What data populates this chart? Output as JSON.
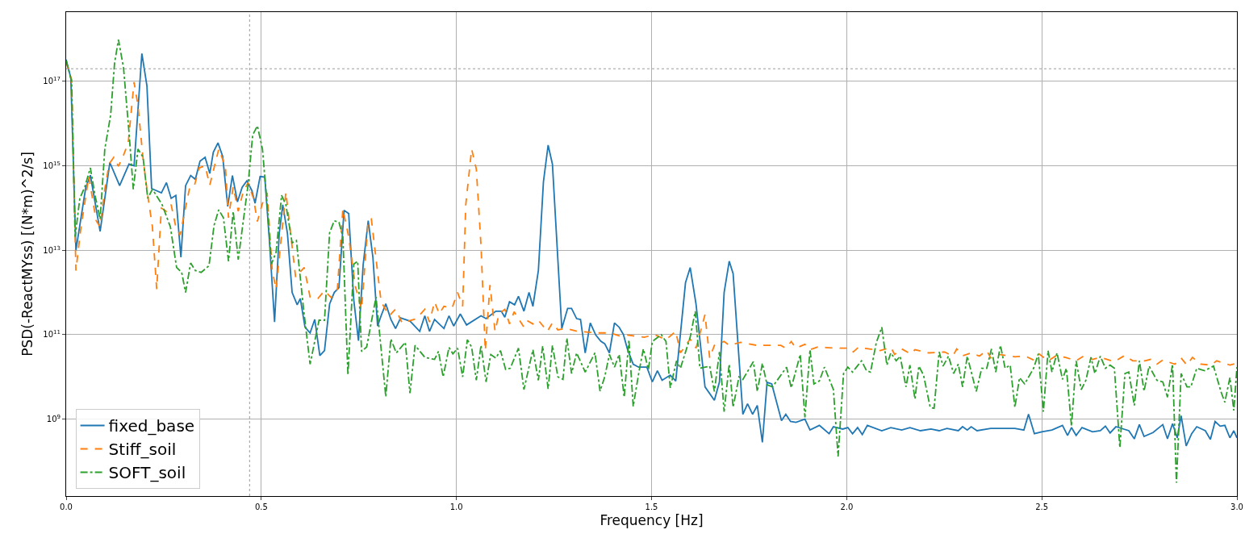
{
  "chart_data": {
    "type": "line",
    "xlabel": "Frequency [Hz]",
    "ylabel": "PSD(-ReactMYss) [(N*m)^2/s]",
    "log": "y",
    "grid": true,
    "legend": "bottom left",
    "marker": "none",
    "xlim": [
      0,
      3
    ],
    "xticks": [
      {
        "value": 0,
        "label": "0.0"
      },
      0.5,
      {
        "value": 1,
        "label": "1.0"
      },
      1.5,
      {
        "value": 2,
        "label": "2.0"
      },
      2.5,
      {
        "value": 3,
        "label": "3.0"
      }
    ],
    "ylim": [
      15000000.0,
      4.4e+18
    ],
    "yticks": [
      {
        "value": 1000000000.0,
        "label": "10$^{9}$"
      },
      {
        "value": 100000000000.0,
        "label": "10$^{11}$"
      },
      {
        "value": 10000000000000.0,
        "label": "10$^{13}$"
      },
      {
        "value": 1000000000000000.0,
        "label": "10$^{15}$"
      },
      {
        "value": 1e+17,
        "label": "10$^{17}$"
      }
    ],
    "ref_lines": [
      {
        "axis": "x",
        "value": 0.47,
        "color": "#808080",
        "line_style": "dotted"
      },
      {
        "axis": "y",
        "value": 2e+17,
        "color": "#808080",
        "line_style": "dotted"
      }
    ],
    "series": [
      {
        "name": "fixed_base",
        "color": "#1f77b4",
        "line_style": "solid",
        "x": [
          0,
          0.012,
          0.025,
          0.05,
          0.062,
          0.087,
          0.112,
          0.137,
          0.161,
          0.174,
          0.194,
          0.207,
          0.219,
          0.244,
          0.257,
          0.269,
          0.281,
          0.294,
          0.306,
          0.319,
          0.331,
          0.343,
          0.356,
          0.368,
          0.377,
          0.389,
          0.401,
          0.414,
          0.426,
          0.439,
          0.451,
          0.463,
          0.476,
          0.484,
          0.497,
          0.509,
          0.521,
          0.534,
          0.546,
          0.555,
          0.567,
          0.579,
          0.592,
          0.6,
          0.612,
          0.625,
          0.637,
          0.65,
          0.662,
          0.675,
          0.687,
          0.699,
          0.712,
          0.724,
          0.737,
          0.749,
          0.761,
          0.774,
          0.786,
          0.798,
          0.807,
          0.819,
          0.832,
          0.844,
          0.857,
          0.881,
          0.906,
          0.919,
          0.931,
          0.944,
          0.968,
          0.981,
          0.993,
          1.01,
          1.026,
          1.063,
          1.076,
          1.101,
          1.115,
          1.124,
          1.136,
          1.149,
          1.159,
          1.173,
          1.186,
          1.196,
          1.21,
          1.223,
          1.235,
          1.246,
          1.27,
          1.285,
          1.295,
          1.308,
          1.318,
          1.33,
          1.343,
          1.357,
          1.37,
          1.38,
          1.392,
          1.405,
          1.417,
          1.428,
          1.438,
          1.453,
          1.467,
          1.488,
          1.502,
          1.515,
          1.527,
          1.548,
          1.562,
          1.587,
          1.599,
          1.614,
          1.637,
          1.661,
          1.674,
          1.686,
          1.699,
          1.709,
          1.734,
          1.746,
          1.759,
          1.771,
          1.784,
          1.796,
          1.808,
          1.833,
          1.844,
          1.856,
          1.87,
          1.893,
          1.906,
          1.93,
          1.955,
          1.966,
          1.99,
          2.003,
          2.015,
          2.028,
          2.04,
          2.053,
          2.09,
          2.113,
          2.141,
          2.162,
          2.189,
          2.216,
          2.237,
          2.257,
          2.286,
          2.297,
          2.309,
          2.319,
          2.334,
          2.369,
          2.431,
          2.454,
          2.466,
          2.481,
          2.5,
          2.526,
          2.553,
          2.566,
          2.576,
          2.588,
          2.603,
          2.63,
          2.65,
          2.663,
          2.675,
          2.69,
          2.723,
          2.737,
          2.75,
          2.762,
          2.785,
          2.81,
          2.822,
          2.835,
          2.847,
          2.857,
          2.87,
          2.884,
          2.897,
          2.919,
          2.932,
          2.944,
          2.957,
          2.969,
          2.982,
          2.992,
          3.0
        ],
        "values": [
          3.3e+17,
          1.2e+17,
          10000000000000.0,
          300000000000000.0,
          600000000000000.0,
          28000000000000.0,
          1200000000000000.0,
          340000000000000.0,
          1100000000000000.0,
          1000000000000000.0,
          4.6e+17,
          7.8e+16,
          290000000000000.0,
          230000000000000.0,
          400000000000000.0,
          170000000000000.0,
          200000000000000.0,
          6800000000000.0,
          340000000000000.0,
          590000000000000.0,
          480000000000000.0,
          1300000000000000.0,
          1600000000000000.0,
          660000000000000.0,
          2100000000000000.0,
          3500000000000000.0,
          1700000000000000.0,
          110000000000000.0,
          590000000000000.0,
          140000000000000.0,
          310000000000000.0,
          440000000000000.0,
          260000000000000.0,
          130000000000000.0,
          560000000000000.0,
          540000000000000.0,
          16000000000000.0,
          200000000000.0,
          25000000000000.0,
          120000000000000.0,
          25000000000000.0,
          1000000000000.0,
          510000000000.0,
          720000000000.0,
          150000000000.0,
          110000000000.0,
          230000000000.0,
          32000000000.0,
          42000000000.0,
          530000000000.0,
          1000000000000.0,
          1300000000000.0,
          88000000000000.0,
          74000000000000.0,
          660000000000.0,
          72000000000.0,
          4500000000000.0,
          50000000000000.0,
          6800000000000.0,
          160000000000.0,
          280000000000.0,
          540000000000.0,
          230000000000.0,
          140000000000.0,
          250000000000.0,
          210000000000.0,
          120000000000.0,
          280000000000.0,
          120000000000.0,
          230000000000.0,
          140000000000.0,
          280000000000.0,
          160000000000.0,
          310000000000.0,
          170000000000.0,
          280000000000.0,
          240000000000.0,
          360000000000.0,
          360000000000.0,
          260000000000.0,
          600000000000.0,
          510000000000.0,
          810000000000.0,
          360000000000.0,
          1000000000000.0,
          470000000000.0,
          3300000000000.0,
          420000000000000.0,
          3100000000000000.0,
          1100000000000000.0,
          140000000000.0,
          420000000000.0,
          420000000000.0,
          240000000000.0,
          230000000000.0,
          37000000000.0,
          190000000000.0,
          98000000000.0,
          70000000000.0,
          61000000000.0,
          37000000000.0,
          190000000000.0,
          150000000000.0,
          100000000000.0,
          46000000000.0,
          20000000000.0,
          17000000000.0,
          17000000000.0,
          7600000000.0,
          14000000000.0,
          8300000000.0,
          11000000000.0,
          8000000000.0,
          1700000000000.0,
          3900000000000.0,
          530000000000.0,
          5800000000.0,
          2800000000.0,
          7600000000.0,
          1000000000000.0,
          5500000000000.0,
          2800000000000.0,
          1300000000.0,
          2300000000.0,
          1300000000.0,
          2100000000.0,
          280000000.0,
          7400000000.0,
          6800000000.0,
          920000000.0,
          1300000000.0,
          880000000.0,
          840000000.0,
          1000000000.0,
          550000000.0,
          710000000.0,
          450000000.0,
          660000000.0,
          580000000.0,
          630000000.0,
          450000000.0,
          630000000.0,
          430000000.0,
          710000000.0,
          530000000.0,
          630000000.0,
          550000000.0,
          630000000.0,
          530000000.0,
          580000000.0,
          530000000.0,
          600000000.0,
          530000000.0,
          660000000.0,
          550000000.0,
          660000000.0,
          530000000.0,
          600000000.0,
          600000000.0,
          550000000.0,
          1300000000.0,
          450000000.0,
          500000000.0,
          550000000.0,
          710000000.0,
          410000000.0,
          630000000.0,
          410000000.0,
          630000000.0,
          500000000.0,
          530000000.0,
          680000000.0,
          470000000.0,
          660000000.0,
          530000000.0,
          340000000.0,
          740000000.0,
          390000000.0,
          480000000.0,
          740000000.0,
          340000000.0,
          780000000.0,
          360000000.0,
          1200000000.0,
          230000000.0,
          450000000.0,
          660000000.0,
          530000000.0,
          330000000.0,
          880000000.0,
          680000000.0,
          710000000.0,
          360000000.0,
          530000000.0,
          360000000.0
        ]
      },
      {
        "name": "Stiff_soil",
        "color": "#ff7f0e",
        "line_style": "dashed",
        "x": [
          0,
          0.014,
          0.025,
          0.037,
          0.048,
          0.058,
          0.077,
          0.087,
          0.099,
          0.11,
          0.122,
          0.134,
          0.147,
          0.159,
          0.174,
          0.184,
          0.197,
          0.209,
          0.221,
          0.232,
          0.244,
          0.257,
          0.269,
          0.281,
          0.292,
          0.304,
          0.317,
          0.329,
          0.341,
          0.356,
          0.368,
          0.391,
          0.408,
          0.416,
          0.428,
          0.441,
          0.453,
          0.466,
          0.48,
          0.49,
          0.503,
          0.515,
          0.528,
          0.538,
          0.563,
          0.588,
          0.61,
          0.625,
          0.645,
          0.662,
          0.679,
          0.695,
          0.709,
          0.724,
          0.741,
          0.757,
          0.774,
          0.782,
          0.807,
          0.828,
          0.844,
          0.861,
          0.898,
          0.919,
          0.931,
          0.944,
          0.956,
          0.968,
          0.989,
          1.003,
          1.016,
          1.024,
          1.039,
          1.051,
          1.063,
          1.074,
          1.086,
          1.099,
          1.109,
          1.124,
          1.136,
          1.148,
          1.173,
          1.183,
          1.196,
          1.21,
          1.233,
          1.246,
          1.26,
          1.281,
          1.31,
          1.366,
          1.395,
          1.417,
          1.438,
          1.481,
          1.508,
          1.537,
          1.562,
          1.574,
          1.599,
          1.614,
          1.637,
          1.649,
          1.661,
          1.686,
          1.699,
          1.728,
          1.769,
          1.802,
          1.831,
          1.844,
          1.858,
          1.87,
          1.893,
          1.906,
          1.926,
          1.968,
          2.009,
          2.017,
          2.03,
          2.086,
          2.113,
          2.123,
          2.141,
          2.164,
          2.175,
          2.21,
          2.251,
          2.272,
          2.282,
          2.299,
          2.319,
          2.34,
          2.359,
          2.369,
          2.39,
          2.431,
          2.458,
          2.479,
          2.493,
          2.516,
          2.535,
          2.561,
          2.588,
          2.607,
          2.63,
          2.65,
          2.686,
          2.712,
          2.733,
          2.764,
          2.779,
          2.795,
          2.81,
          2.841,
          2.857,
          2.872,
          2.886,
          2.907,
          2.934,
          2.948,
          2.969,
          2.982,
          3.0
        ],
        "values": [
          2.9e+17,
          1.1e+17,
          3300000000000.0,
          30000000000000.0,
          140000000000000.0,
          560000000000000.0,
          50000000000000.0,
          36000000000000.0,
          280000000000000.0,
          1100000000000000.0,
          1600000000000000.0,
          980000000000000.0,
          1800000000000000.0,
          3500000000000000.0,
          9.6e+16,
          2.7e+16,
          1500000000000000.0,
          200000000000000.0,
          36000000000000.0,
          1200000000000.0,
          100000000000000.0,
          84000000000000.0,
          120000000000000.0,
          36000000000000.0,
          23000000000000.0,
          84000000000000.0,
          320000000000000.0,
          350000000000000.0,
          900000000000000.0,
          1000000000000000.0,
          350000000000000.0,
          2500000000000000.0,
          980000000000000.0,
          59000000000000.0,
          320000000000000.0,
          84000000000000.0,
          230000000000000.0,
          400000000000000.0,
          170000000000000.0,
          48000000000000.0,
          130000000000000.0,
          230000000000000.0,
          3300000000000.0,
          1200000000000.0,
          240000000000000.0,
          2300000000000.0,
          3900000000000.0,
          780000000000.0,
          720000000000.0,
          1100000000000.0,
          760000000000.0,
          1200000000000.0,
          95000000000000.0,
          21000000000000.0,
          1400000000000.0,
          400000000000.0,
          52000000000000.0,
          55000000000000.0,
          600000000000.0,
          280000000000.0,
          400000000000.0,
          190000000000.0,
          240000000000.0,
          400000000000.0,
          200000000000.0,
          600000000000.0,
          310000000000.0,
          470000000000.0,
          430000000000.0,
          1000000000000.0,
          470000000000.0,
          120000000000000.0,
          2500000000000000.0,
          840000000000000.0,
          13000000000000.0,
          42000000000.0,
          1500000000000.0,
          120000000000.0,
          310000000000.0,
          400000000000.0,
          180000000000.0,
          350000000000.0,
          150000000000.0,
          210000000000.0,
          180000000000.0,
          220000000000.0,
          120000000000.0,
          190000000000.0,
          130000000000.0,
          140000000000.0,
          120000000000.0,
          110000000000.0,
          110000000000.0,
          94000000000.0,
          98000000000.0,
          87000000000.0,
          100000000000.0,
          76000000000.0,
          120000000000.0,
          37000000000.0,
          79000000000.0,
          48000000000.0,
          300000000000.0,
          28000000000.0,
          56000000000.0,
          69000000000.0,
          56000000000.0,
          66000000000.0,
          56000000000.0,
          56000000000.0,
          56000000000.0,
          48000000000.0,
          69000000000.0,
          48000000000.0,
          59000000000.0,
          44000000000.0,
          51000000000.0,
          48000000000.0,
          48000000000.0,
          39000000000.0,
          50000000000.0,
          42000000000.0,
          50000000000.0,
          34000000000.0,
          46000000000.0,
          35000000000.0,
          44000000000.0,
          37000000000.0,
          39000000000.0,
          31000000000.0,
          46000000000.0,
          32000000000.0,
          37000000000.0,
          31000000000.0,
          42000000000.0,
          28000000000.0,
          34000000000.0,
          30000000000.0,
          31000000000.0,
          25000000000.0,
          35000000000.0,
          24000000000.0,
          31000000000.0,
          29000000000.0,
          24000000000.0,
          31000000000.0,
          26000000000.0,
          29000000000.0,
          23000000000.0,
          32000000000.0,
          24000000000.0,
          24000000000.0,
          26000000000.0,
          20000000000.0,
          25000000000.0,
          20000000000.0,
          28000000000.0,
          19000000000.0,
          29000000000.0,
          20000000000.0,
          19000000000.0,
          24000000000.0,
          21000000000.0,
          19000000000.0,
          21000000000.0
        ]
      },
      {
        "name": "SOFT_soil",
        "color": "#2ca02c",
        "line_style": "dashdot",
        "x": [
          0,
          0.014,
          0.023,
          0.035,
          0.048,
          0.062,
          0.074,
          0.087,
          0.099,
          0.114,
          0.124,
          0.134,
          0.147,
          0.161,
          0.172,
          0.184,
          0.197,
          0.209,
          0.221,
          0.246,
          0.267,
          0.283,
          0.296,
          0.306,
          0.319,
          0.331,
          0.346,
          0.366,
          0.379,
          0.391,
          0.403,
          0.416,
          0.428,
          0.441,
          0.453,
          0.466,
          0.478,
          0.49,
          0.503,
          0.515,
          0.526,
          0.538,
          0.552,
          0.563,
          0.579,
          0.59,
          0.608,
          0.625,
          0.648,
          0.662,
          0.675,
          0.687,
          0.699,
          0.709,
          0.722,
          0.737,
          0.747,
          0.757,
          0.77,
          0.794,
          0.819,
          0.832,
          0.846,
          0.869,
          0.881,
          0.894,
          0.919,
          0.944,
          0.954,
          0.966,
          0.981,
          0.991,
          1.003,
          1.016,
          1.028,
          1.039,
          1.051,
          1.063,
          1.076,
          1.088,
          1.101,
          1.113,
          1.126,
          1.138,
          1.159,
          1.173,
          1.196,
          1.21,
          1.221,
          1.235,
          1.246,
          1.26,
          1.273,
          1.283,
          1.295,
          1.308,
          1.33,
          1.355,
          1.368,
          1.38,
          1.392,
          1.405,
          1.417,
          1.43,
          1.442,
          1.453,
          1.467,
          1.479,
          1.492,
          1.502,
          1.525,
          1.537,
          1.548,
          1.564,
          1.574,
          1.599,
          1.612,
          1.624,
          1.649,
          1.661,
          1.674,
          1.686,
          1.699,
          1.709,
          1.724,
          1.734,
          1.761,
          1.771,
          1.784,
          1.796,
          1.81,
          1.846,
          1.858,
          1.881,
          1.893,
          1.906,
          1.916,
          1.93,
          1.943,
          1.966,
          1.978,
          1.992,
          2.003,
          2.015,
          2.038,
          2.051,
          2.061,
          2.076,
          2.09,
          2.103,
          2.113,
          2.127,
          2.137,
          2.152,
          2.162,
          2.175,
          2.185,
          2.197,
          2.214,
          2.224,
          2.237,
          2.247,
          2.261,
          2.274,
          2.286,
          2.297,
          2.309,
          2.332,
          2.346,
          2.359,
          2.371,
          2.382,
          2.394,
          2.406,
          2.419,
          2.431,
          2.443,
          2.456,
          2.479,
          2.491,
          2.504,
          2.516,
          2.526,
          2.539,
          2.553,
          2.563,
          2.576,
          2.588,
          2.601,
          2.613,
          2.626,
          2.636,
          2.65,
          2.663,
          2.675,
          2.686,
          2.7,
          2.713,
          2.723,
          2.737,
          2.75,
          2.762,
          2.775,
          2.795,
          2.81,
          2.822,
          2.835,
          2.845,
          2.857,
          2.872,
          2.882,
          2.897,
          2.917,
          2.94,
          2.959,
          2.969,
          2.982,
          2.992,
          3.0
        ],
        "values": [
          3.1e+17,
          1e+17,
          21000000000000.0,
          170000000000000.0,
          320000000000000.0,
          900000000000000.0,
          200000000000000.0,
          55000000000000.0,
          2500000000000000.0,
          1.6e+16,
          2.7e+17,
          9.8e+17,
          2.1e+17,
          6300000000000000.0,
          280000000000000.0,
          2500000000000000.0,
          1600000000000000.0,
          170000000000000.0,
          280000000000000.0,
          120000000000000.0,
          36000000000000.0,
          3900000000000.0,
          3000000000000.0,
          1000000000000.0,
          5000000000000.0,
          3300000000000.0,
          3000000000000.0,
          4300000000000.0,
          39000000000000.0,
          91000000000000.0,
          59000000000000.0,
          5500000000000.0,
          84000000000000.0,
          6000000000000.0,
          43000000000000.0,
          350000000000000.0,
          5400000000000000.0,
          8900000000000000.0,
          2500000000000000.0,
          120000000000000.0,
          4700000000000.0,
          9100000000000.0,
          200000000000000.0,
          120000000000000.0,
          15000000000000.0,
          17000000000000.0,
          430000000000.0,
          20000000000.0,
          220000000000.0,
          220000000000.0,
          26000000000000.0,
          50000000000000.0,
          46000000000000.0,
          21000000000000.0,
          11000000000.0,
          4700000000000.0,
          5500000000000.0,
          40000000000.0,
          51000000000.0,
          780000000000.0,
          3400000000.0,
          79000000000.0,
          37000000000.0,
          66000000000.0,
          4100000000.0,
          56000000000.0,
          29000000000.0,
          26000000000.0,
          40000000000.0,
          10000000000.0,
          50000000000.0,
          35000000000.0,
          48000000000.0,
          10000000000.0,
          76000000000.0,
          51000000000.0,
          8300000000.0,
          56000000000.0,
          7600000000.0,
          34000000000.0,
          28000000000.0,
          42000000000.0,
          15000000000.0,
          16000000000.0,
          48000000000.0,
          5000000000.0,
          44000000000.0,
          8300000000.0,
          54000000000.0,
          5200000000.0,
          56000000000.0,
          10000000000.0,
          8700000000.0,
          83000000000.0,
          12000000000.0,
          37000000000.0,
          13000000000.0,
          37000000000.0,
          4600000000.0,
          10000000000.0,
          34000000000.0,
          17000000000.0,
          34000000000.0,
          3300000000.0,
          76000000000.0,
          2000000000.0,
          12000000000.0,
          46000000000.0,
          15000000000.0,
          69000000000.0,
          100000000000.0,
          69000000000.0,
          5500000000.0,
          24000000000.0,
          16000000000.0,
          87000000000.0,
          360000000000.0,
          16000000000.0,
          18000000000.0,
          4500000000.0,
          39000000000.0,
          1500000000.0,
          20000000000.0,
          1900000000.0,
          10000000000.0,
          8700000000.0,
          23000000000.0,
          4500000000.0,
          21000000000.0,
          6500000000.0,
          5800000000.0,
          17000000000.0,
          5500000000.0,
          34000000000.0,
          1100000000.0,
          44000000000.0,
          6800000000.0,
          8000000000.0,
          17000000000.0,
          5000000000.0,
          130000000.0,
          12000000000.0,
          17000000000.0,
          13000000000.0,
          24000000000.0,
          14000000000.0,
          13000000000.0,
          65000000000.0,
          150000000000.0,
          19000000000.0,
          37000000000.0,
          24000000000.0,
          31000000000.0,
          5800000000.0,
          19000000000.0,
          3000000000.0,
          18000000000.0,
          11000000000.0,
          1900000000.0,
          1800000000.0,
          39000000000.0,
          18000000000.0,
          31000000000.0,
          12000000000.0,
          20000000000.0,
          5800000000.0,
          31000000000.0,
          4500000000.0,
          16000000000.0,
          16000000000.0,
          46000000000.0,
          13000000000.0,
          56000000000.0,
          16000000000.0,
          19000000000.0,
          1900000000.0,
          9600000000.0,
          6800000000.0,
          16000000000.0,
          35000000000.0,
          1500000000.0,
          42000000000.0,
          13000000000.0,
          37000000000.0,
          8700000000.0,
          16000000000.0,
          680000000.0,
          24000000000.0,
          5000000000.0,
          8300000000.0,
          29000000000.0,
          12000000000.0,
          31000000000.0,
          16000000000.0,
          19000000000.0,
          16000000000.0,
          210000000.0,
          12000000000.0,
          13000000000.0,
          2100000000.0,
          24000000000.0,
          4600000000.0,
          18000000000.0,
          8300000000.0,
          7600000000.0,
          3300000000.0,
          20000000000.0,
          31000000.0,
          12000000000.0,
          5800000000.0,
          5800000000.0,
          16000000000.0,
          14000000000.0,
          18000000000.0,
          4500000000.0,
          2500000000.0,
          9600000000.0,
          1600000000.0,
          17000000000.0
        ]
      }
    ]
  }
}
